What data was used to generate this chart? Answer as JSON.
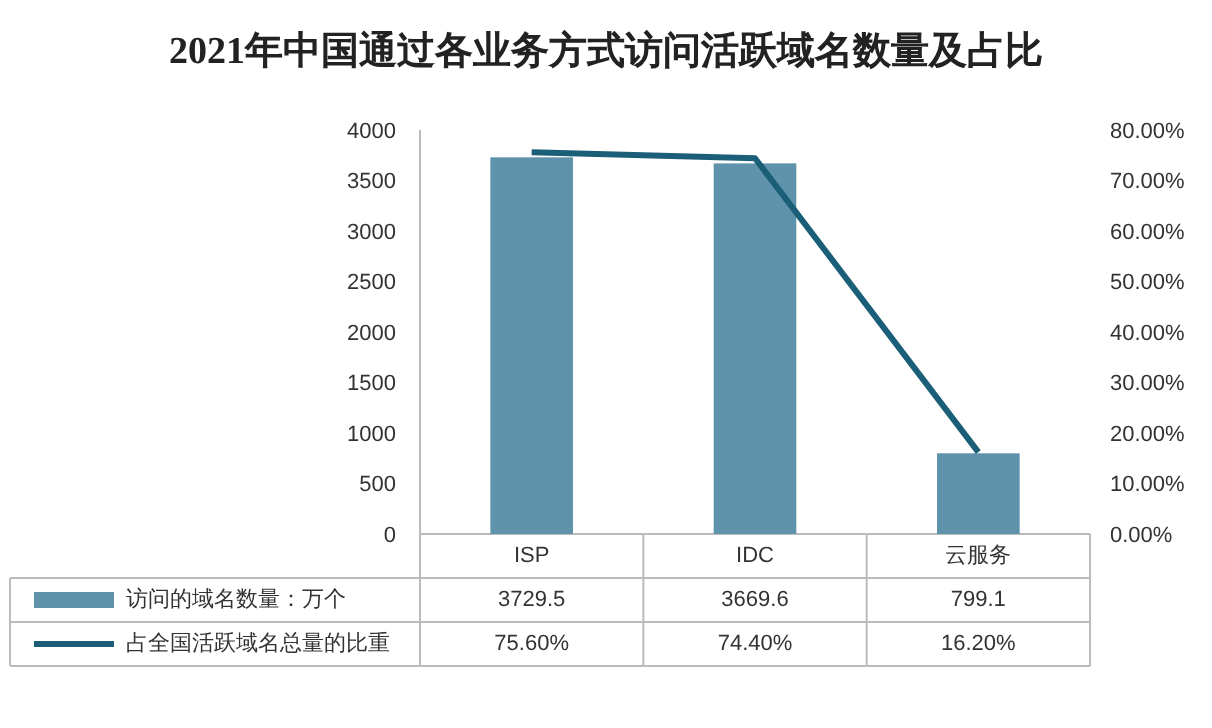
{
  "chart_data": {
    "type": "bar",
    "title": "2021年中国通过各业务方式访问活跃域名数量及占比",
    "categories": [
      "ISP",
      "IDC",
      "云服务"
    ],
    "series": [
      {
        "name": "访问的域名数量：万个",
        "color": "#5f93ab",
        "values": [
          3729.5,
          3669.6,
          799.1
        ],
        "value_labels": [
          "3729.5",
          "3669.6",
          "799.1"
        ]
      },
      {
        "name": "占全国活跃域名总量的比重",
        "type": "line",
        "axis": "y2",
        "color": "#1b5e78",
        "values": [
          75.6,
          74.4,
          16.2
        ],
        "value_labels": [
          "75.60%",
          "74.40%",
          "16.20%"
        ]
      }
    ],
    "ylim": [
      0,
      4000
    ],
    "yticks": [
      0,
      500,
      1000,
      1500,
      2000,
      2500,
      3000,
      3500,
      4000
    ],
    "y2lim": [
      0,
      80
    ],
    "y2ticks": [
      {
        "value": 0,
        "label": "0.00%"
      },
      {
        "value": 10,
        "label": "10.00%"
      },
      {
        "value": 20,
        "label": "20.00%"
      },
      {
        "value": 30,
        "label": "30.00%"
      },
      {
        "value": 40,
        "label": "40.00%"
      },
      {
        "value": 50,
        "label": "50.00%"
      },
      {
        "value": 60,
        "label": "60.00%"
      },
      {
        "value": 70,
        "label": "70.00%"
      },
      {
        "value": 80,
        "label": "80.00%"
      }
    ],
    "legend": "bottom",
    "grid": false,
    "marker": "none"
  }
}
